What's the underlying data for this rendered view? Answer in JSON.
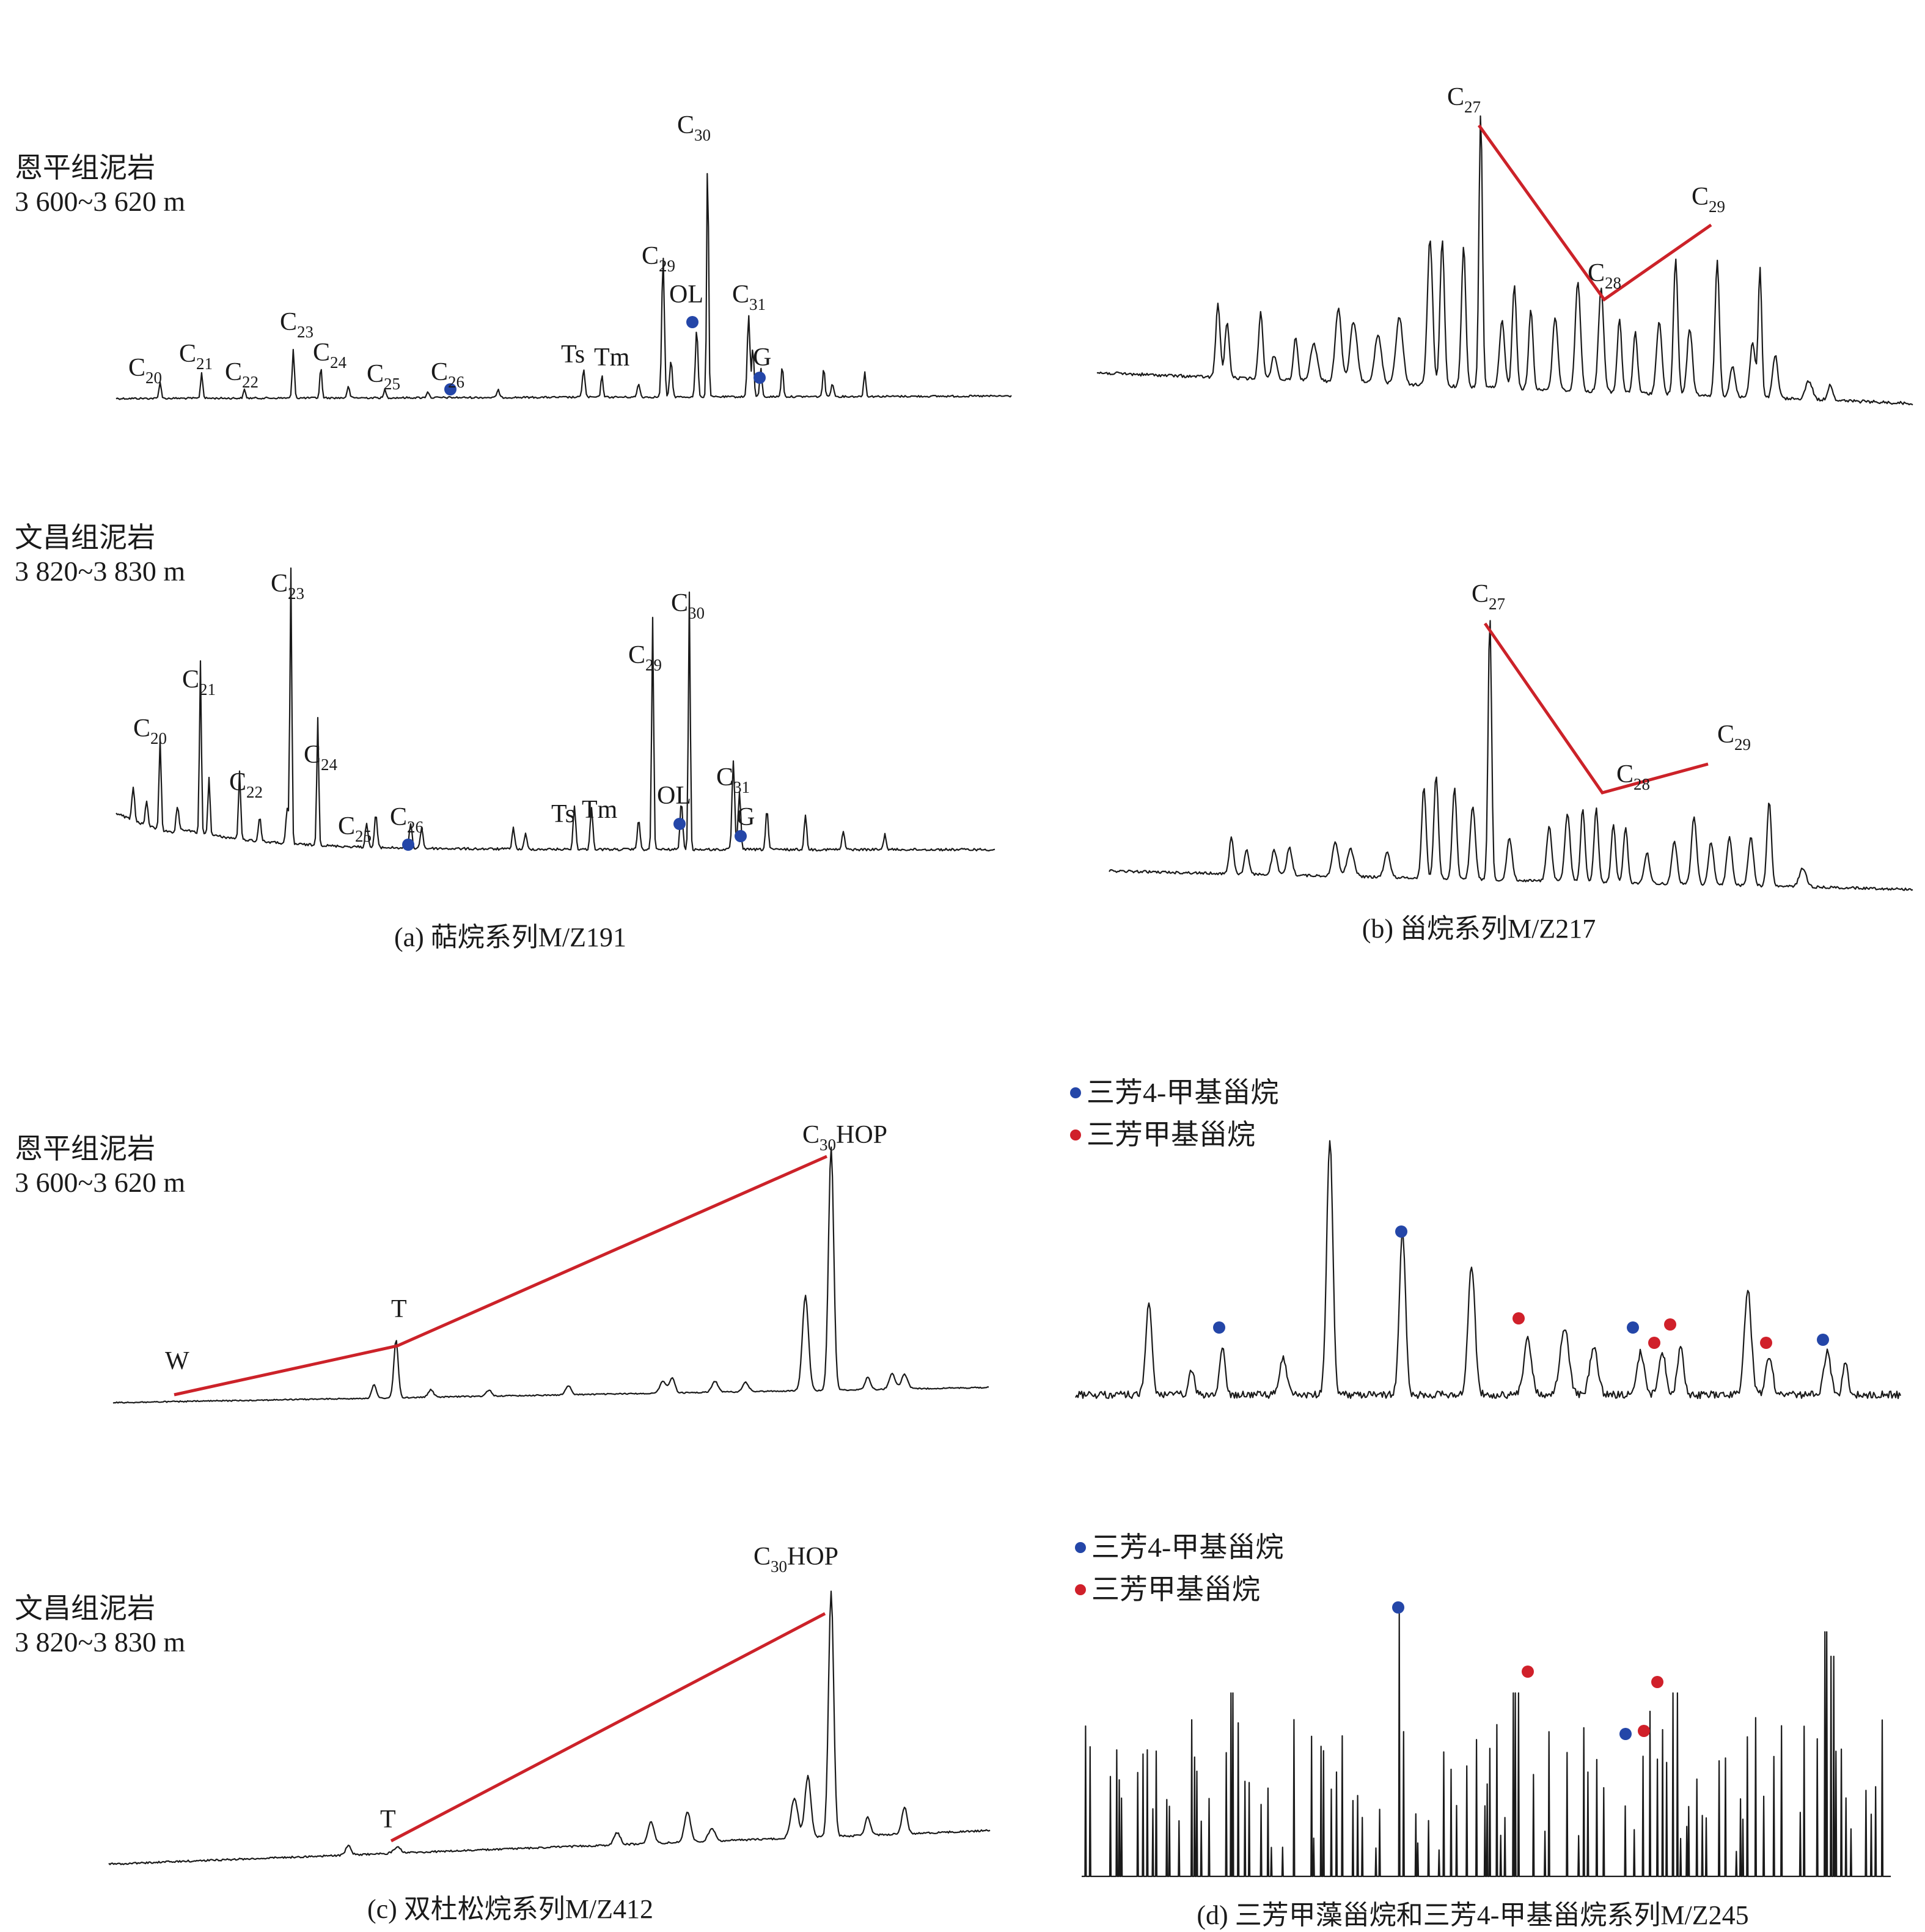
{
  "panels": [
    {
      "id": "a",
      "caption": "(a) 萜烷系列M/Z191",
      "chart_data": {
        "type": "line",
        "title": "(a) 萜烷系列M/Z191",
        "traces": [
          {
            "sample": [
              "恩平组泥岩",
              "3 600~3 620 m"
            ],
            "peaks": [
              {
                "base": "C",
                "sub": "20"
              },
              {
                "base": "C",
                "sub": "21"
              },
              {
                "base": "C",
                "sub": "22"
              },
              {
                "base": "C",
                "sub": "23"
              },
              {
                "base": "C",
                "sub": "24"
              },
              {
                "base": "C",
                "sub": "25"
              },
              {
                "base": "C",
                "sub": "26"
              },
              {
                "base": "Ts",
                "sub": ""
              },
              {
                "base": "Tm",
                "sub": ""
              },
              {
                "base": "C",
                "sub": "29"
              },
              {
                "base": "C",
                "sub": "30"
              },
              {
                "base": "OL",
                "sub": ""
              },
              {
                "base": "C",
                "sub": "31"
              },
              {
                "base": "G",
                "sub": ""
              }
            ]
          },
          {
            "sample": [
              "文昌组泥岩",
              "3 820~3 830 m"
            ],
            "peaks": [
              {
                "base": "C",
                "sub": "20"
              },
              {
                "base": "C",
                "sub": "21"
              },
              {
                "base": "C",
                "sub": "22"
              },
              {
                "base": "C",
                "sub": "23"
              },
              {
                "base": "C",
                "sub": "24"
              },
              {
                "base": "C",
                "sub": "25"
              },
              {
                "base": "C",
                "sub": "26"
              },
              {
                "base": "Ts",
                "sub": ""
              },
              {
                "base": "Tm",
                "sub": ""
              },
              {
                "base": "C",
                "sub": "29"
              },
              {
                "base": "C",
                "sub": "30"
              },
              {
                "base": "OL",
                "sub": ""
              },
              {
                "base": "C",
                "sub": "31"
              },
              {
                "base": "G",
                "sub": ""
              }
            ]
          }
        ]
      }
    },
    {
      "id": "b",
      "caption": "(b) 甾烷系列M/Z217",
      "chart_data": {
        "type": "line",
        "title": "(b) 甾烷系列M/Z217",
        "traces": [
          {
            "peaks": [
              {
                "base": "C",
                "sub": "27"
              },
              {
                "base": "C",
                "sub": "28"
              },
              {
                "base": "C",
                "sub": "29"
              }
            ]
          },
          {
            "peaks": [
              {
                "base": "C",
                "sub": "27"
              },
              {
                "base": "C",
                "sub": "28"
              },
              {
                "base": "C",
                "sub": "29"
              }
            ]
          }
        ]
      }
    },
    {
      "id": "c",
      "caption": "(c) 双杜松烷系列M/Z412",
      "chart_data": {
        "type": "line",
        "title": "(c) 双杜松烷系列M/Z412",
        "traces": [
          {
            "sample": [
              "恩平组泥岩",
              "3 600~3 620 m"
            ],
            "peaks": [
              {
                "base": "W",
                "sub": "",
                "tail": ""
              },
              {
                "base": "T",
                "sub": "",
                "tail": ""
              },
              {
                "base": "C",
                "sub": "30",
                "tail": "HOP"
              }
            ]
          },
          {
            "sample": [
              "文昌组泥岩",
              "3 820~3 830 m"
            ],
            "peaks": [
              {
                "base": "T",
                "sub": "",
                "tail": ""
              },
              {
                "base": "C",
                "sub": "30",
                "tail": "HOP"
              }
            ]
          }
        ]
      }
    },
    {
      "id": "d",
      "caption": "(d) 三芳甲藻甾烷和三芳4-甲基甾烷系列M/Z245",
      "chart_data": {
        "type": "line",
        "title": "(d) 三芳甲藻甾烷和三芳4-甲基甾烷系列M/Z245",
        "legend": [
          {
            "label": "三芳4-甲基甾烷",
            "color": "#2446a8"
          },
          {
            "label": "三芳甲基甾烷",
            "color": "#d0202a"
          }
        ],
        "legend_placement": "top-left"
      }
    }
  ],
  "colors": {
    "trace": "#1a1a1a",
    "trend_line": "#cc2229",
    "marker_blue": "#2446a8",
    "marker_red": "#d0202a"
  }
}
